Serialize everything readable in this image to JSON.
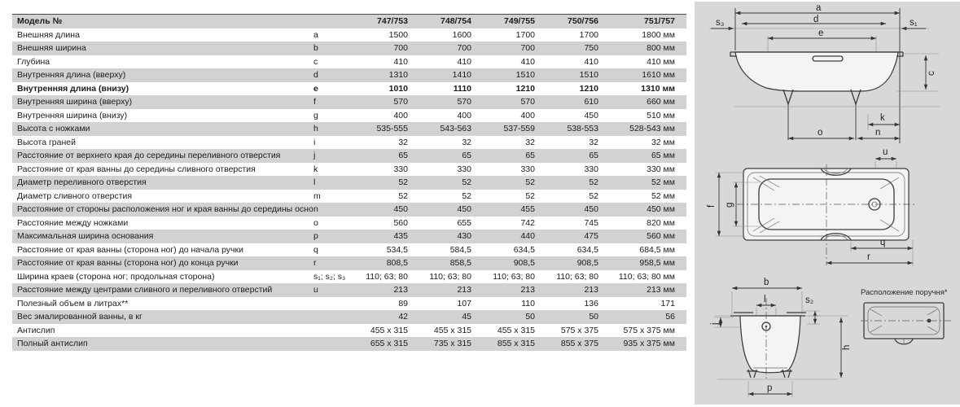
{
  "colors": {
    "stripe": "#d2d2d2",
    "panel_background": "#d8d8d8",
    "text": "#1b1b1b",
    "line": "#3c3c3c"
  },
  "table": {
    "header": {
      "model_label": "Модель №",
      "models": [
        "747/753",
        "748/754",
        "749/755",
        "750/756",
        "751/757"
      ]
    },
    "rows": [
      {
        "label": "Внешняя длина",
        "letter": "a",
        "values": [
          "1500",
          "1600",
          "1700",
          "1700",
          "1800"
        ],
        "unit": "мм",
        "bold": false
      },
      {
        "label": "Внешняя ширина",
        "letter": "b",
        "values": [
          "700",
          "700",
          "700",
          "750",
          "800"
        ],
        "unit": "мм",
        "bold": false
      },
      {
        "label": "Глубина",
        "letter": "c",
        "values": [
          "410",
          "410",
          "410",
          "410",
          "410"
        ],
        "unit": "мм",
        "bold": false
      },
      {
        "label": "Внутренняя длина (вверху)",
        "letter": "d",
        "values": [
          "1310",
          "1410",
          "1510",
          "1510",
          "1610"
        ],
        "unit": "мм",
        "bold": false
      },
      {
        "label": "Внутренняя длина (внизу)",
        "letter": "e",
        "values": [
          "1010",
          "1110",
          "1210",
          "1210",
          "1310"
        ],
        "unit": "мм",
        "bold": true
      },
      {
        "label": "Внутренняя ширина (вверху)",
        "letter": "f",
        "values": [
          "570",
          "570",
          "570",
          "610",
          "660"
        ],
        "unit": "мм",
        "bold": false
      },
      {
        "label": "Внутренняя ширина (внизу)",
        "letter": "g",
        "values": [
          "400",
          "400",
          "400",
          "450",
          "510"
        ],
        "unit": "мм",
        "bold": false
      },
      {
        "label": "Высота с ножками",
        "letter": "h",
        "values": [
          "535-555",
          "543-563",
          "537-559",
          "538-553",
          "528-543"
        ],
        "unit": "мм",
        "bold": false
      },
      {
        "label": "Высота граней",
        "letter": "i",
        "values": [
          "32",
          "32",
          "32",
          "32",
          "32"
        ],
        "unit": "мм",
        "bold": false
      },
      {
        "label": "Расстояние от верхнего края до середины переливного отверстия",
        "letter": "j",
        "values": [
          "65",
          "65",
          "65",
          "65",
          "65"
        ],
        "unit": "мм",
        "bold": false
      },
      {
        "label": "Расстояние от края ванны до середины сливного отверстия",
        "letter": "k",
        "values": [
          "330",
          "330",
          "330",
          "330",
          "330"
        ],
        "unit": "мм",
        "bold": false
      },
      {
        "label": "Диаметр переливного отверстия",
        "letter": "l",
        "values": [
          "52",
          "52",
          "52",
          "52",
          "52"
        ],
        "unit": "мм",
        "bold": false
      },
      {
        "label": "Диаметр сливного отверстия",
        "letter": "m",
        "values": [
          "52",
          "52",
          "52",
          "52",
          "52"
        ],
        "unit": "мм",
        "bold": false
      },
      {
        "label": "Расстояние от стороны расположения ног и края ванны до середины основания",
        "letter": "n",
        "values": [
          "450",
          "450",
          "455",
          "450",
          "450"
        ],
        "unit": "мм",
        "bold": false
      },
      {
        "label": "Расстояние между ножками",
        "letter": "o",
        "values": [
          "560",
          "655",
          "742",
          "745",
          "820"
        ],
        "unit": "мм",
        "bold": false
      },
      {
        "label": "Максимальная ширина основания",
        "letter": "p",
        "values": [
          "435",
          "430",
          "440",
          "475",
          "560"
        ],
        "unit": "мм",
        "bold": false
      },
      {
        "label": "Расстояние от края ванны (сторона ног) до начала ручки",
        "letter": "q",
        "values": [
          "534,5",
          "584,5",
          "634,5",
          "634,5",
          "684,5"
        ],
        "unit": "мм",
        "bold": false
      },
      {
        "label": "Расстояние от края ванны (сторона ног) до конца ручки",
        "letter": "r",
        "values": [
          "808,5",
          "858,5",
          "908,5",
          "908,5",
          "958,5"
        ],
        "unit": "мм",
        "bold": false
      },
      {
        "label": "Ширина краев (сторона ног; продольная сторона)",
        "letter": "s₁; s₂; s₃",
        "values": [
          "110; 63; 80",
          "110; 63; 80",
          "110; 63; 80",
          "110; 63; 80",
          "110; 63; 80"
        ],
        "unit": "мм",
        "bold": false
      },
      {
        "label": "Расстояние между центрами сливного и переливного отверстий",
        "letter": "u",
        "values": [
          "213",
          "213",
          "213",
          "213",
          "213"
        ],
        "unit": "мм",
        "bold": false
      },
      {
        "label": "Полезный объем в литрах**",
        "letter": "",
        "values": [
          "89",
          "107",
          "110",
          "136",
          "171"
        ],
        "unit": "",
        "bold": false
      },
      {
        "label": "Вес эмалированной ванны, в кг",
        "letter": "",
        "values": [
          "42",
          "45",
          "50",
          "50",
          "56"
        ],
        "unit": "",
        "bold": false
      },
      {
        "label": "Антислип",
        "letter": "",
        "values": [
          "455 x 315",
          "455 x 315",
          "455 x 315",
          "575 x 375",
          "575 x 375"
        ],
        "unit": "мм",
        "bold": false
      },
      {
        "label": "Полный антислип",
        "letter": "",
        "values": [
          "655 x 315",
          "735 x 315",
          "855 x 315",
          "855 x 375",
          "935 x 375"
        ],
        "unit": "мм",
        "bold": false
      }
    ]
  },
  "diagrams": {
    "side_view": {
      "labels": {
        "a": "a",
        "d": "d",
        "e": "e",
        "s3": "s₃",
        "s1": "s₁",
        "c": "c",
        "k": "k",
        "o": "o",
        "n": "n"
      }
    },
    "top_view": {
      "labels": {
        "u": "u",
        "f": "f",
        "g": "g",
        "q": "q",
        "r": "r"
      }
    },
    "end_view": {
      "labels": {
        "b": "b",
        "l": "l",
        "s2": "s₂",
        "j": "j",
        "h": "h",
        "p": "p"
      }
    },
    "handle_view": {
      "caption": "Расположение поручня*"
    }
  }
}
